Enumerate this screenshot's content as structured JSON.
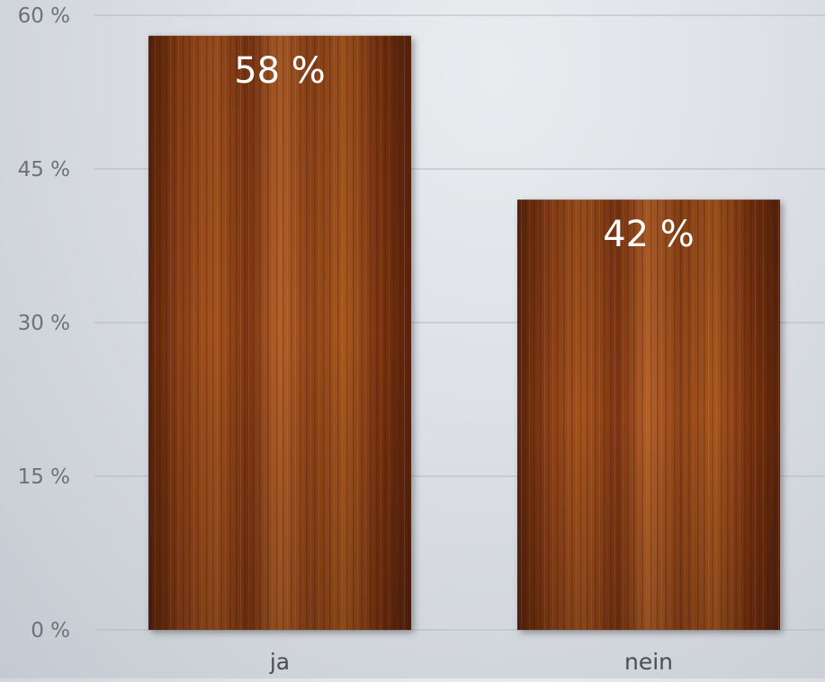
{
  "chart_data": {
    "type": "bar",
    "categories": [
      "ja",
      "nein"
    ],
    "values": [
      58,
      42
    ],
    "value_labels": [
      "58 %",
      "42 %"
    ],
    "ylim": [
      0,
      60
    ],
    "yticks": [
      0,
      15,
      30,
      45,
      60
    ],
    "ytick_labels": [
      "0 %",
      "15 %",
      "30 %",
      "45 %",
      "60 %"
    ],
    "grid": true,
    "bar_fill": "wood-texture",
    "colors": {
      "background": "#d8dde2",
      "gridline": "#b4b9bf",
      "wood_dark": "#5a240c",
      "wood_mid": "#8b3f16",
      "wood_light": "#b5622a",
      "value_label": "#ffffff",
      "tick_label": "#6d7278",
      "category_label": "#4a4e53"
    }
  }
}
